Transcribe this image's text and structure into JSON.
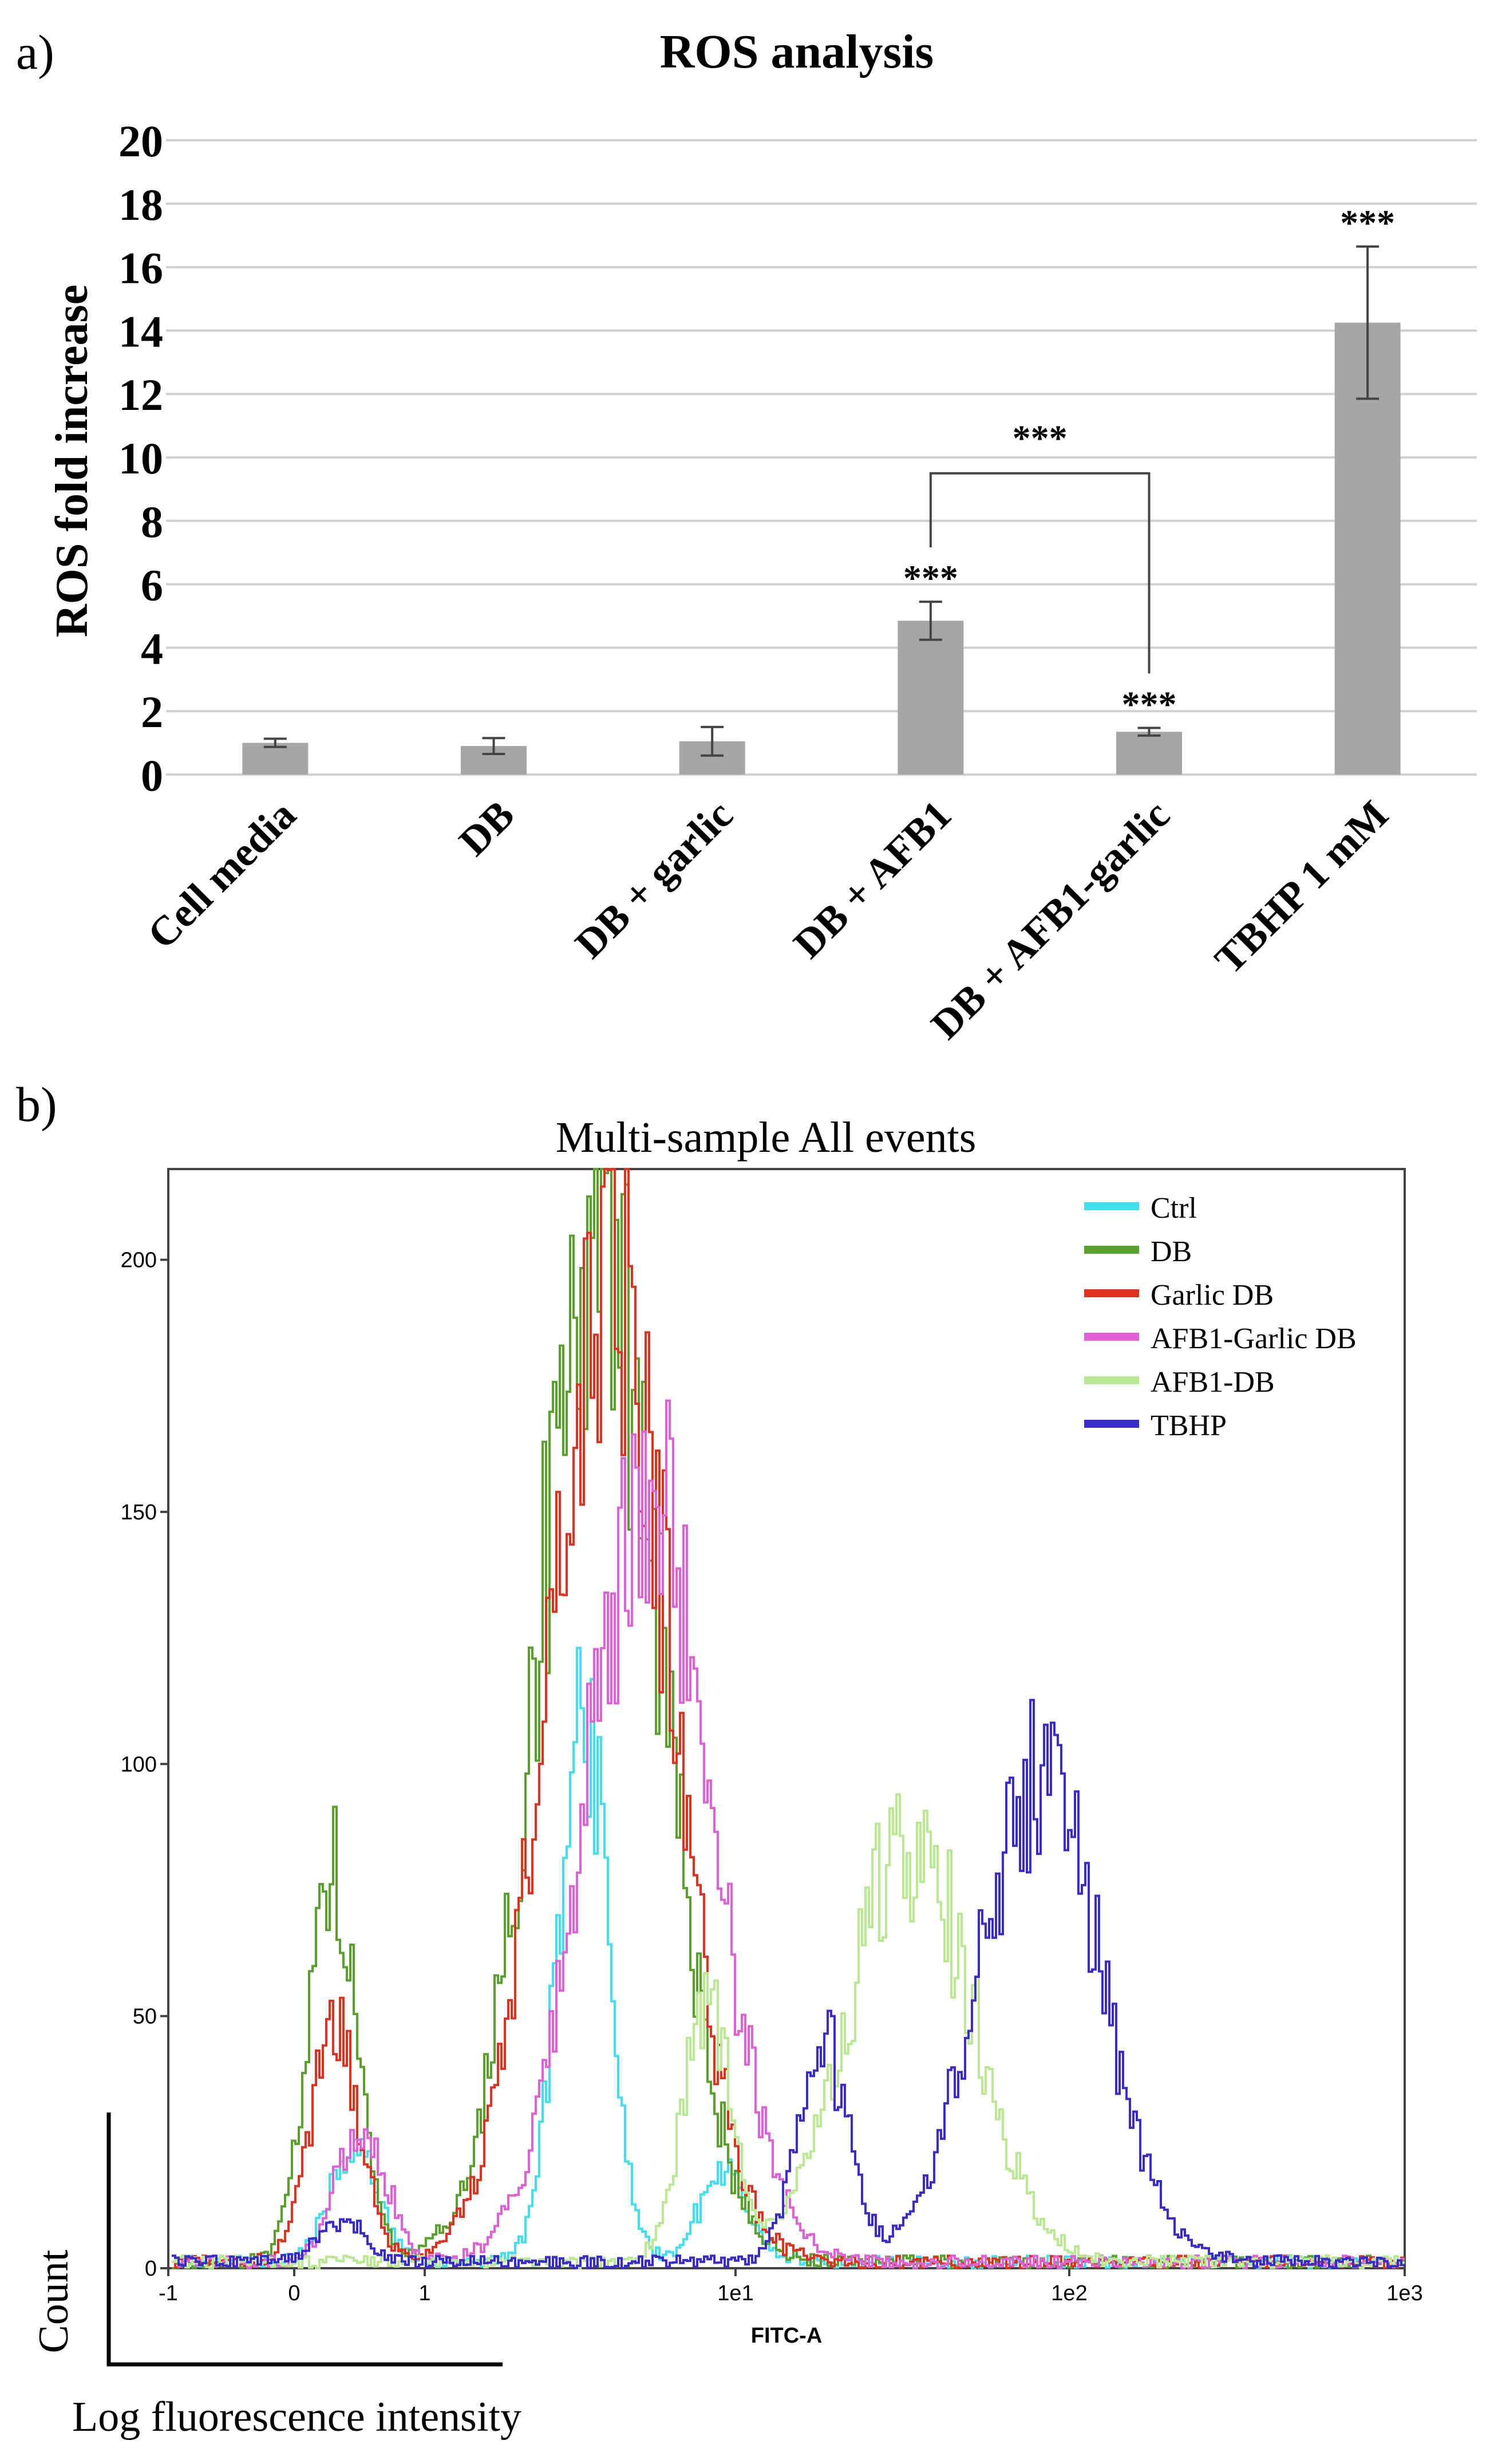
{
  "panel_labels": {
    "a": "a)",
    "b": "b)"
  },
  "chart_data": [
    {
      "type": "bar",
      "title": "ROS analysis",
      "xlabel": "",
      "ylabel": "ROS fold increase",
      "ylim": [
        0,
        20
      ],
      "yticks": [
        0,
        2,
        4,
        6,
        8,
        10,
        12,
        14,
        16,
        18,
        20
      ],
      "grid": true,
      "categories": [
        "Cell media",
        "DB",
        "DB + garlic",
        "DB + AFB1",
        "DB + AFB1-garlic",
        "TBHP 1 mM"
      ],
      "values": [
        1.0,
        0.9,
        1.05,
        4.85,
        1.35,
        14.25
      ],
      "errors": [
        0.13,
        0.25,
        0.45,
        0.6,
        0.12,
        2.4
      ],
      "significance": [
        "",
        "",
        "",
        "***",
        "***",
        "***"
      ],
      "bracket": {
        "from": "DB + AFB1",
        "to": "DB + AFB1-garlic",
        "label": "***"
      },
      "bar_color": "#a6a6a6"
    },
    {
      "type": "line",
      "title": "Multi-sample All events",
      "xlabel": "FITC-A",
      "ylabel": "",
      "x_scale": "log",
      "xlim": [
        -1,
        1000
      ],
      "ylim": [
        0,
        218
      ],
      "xtick_labels": [
        "-1",
        "0",
        "1",
        "1e1",
        "1e2",
        "1e3"
      ],
      "yticks": [
        0,
        50,
        100,
        150,
        200
      ],
      "axis_annotation": {
        "count": "Count",
        "log": "Log fluorescence intensity"
      },
      "legend_position": "top-right",
      "series": [
        {
          "name": "Ctrl",
          "color": "#40e0f0",
          "peaks": [
            [
              0.45,
              22
            ],
            [
              3.2,
              112
            ],
            [
              9,
              18
            ]
          ]
        },
        {
          "name": "DB",
          "color": "#5aa02c",
          "peaks": [
            [
              0.28,
              78
            ],
            [
              3.6,
              205
            ]
          ]
        },
        {
          "name": "Garlic DB",
          "color": "#e0301e",
          "peaks": [
            [
              0.3,
              46
            ],
            [
              3.9,
              200
            ]
          ]
        },
        {
          "name": "AFB1-Garlic DB",
          "color": "#e060d8",
          "peaks": [
            [
              0.5,
              28
            ],
            [
              5.2,
              158
            ]
          ]
        },
        {
          "name": "AFB1-DB",
          "color": "#b8e890",
          "peaks": [
            [
              8,
              50
            ],
            [
              33,
              85
            ]
          ]
        },
        {
          "name": "TBHP",
          "color": "#3a2ccc",
          "peaks": [
            [
              0.35,
              8
            ],
            [
              18,
              45
            ],
            [
              80,
              96
            ]
          ]
        }
      ]
    }
  ]
}
